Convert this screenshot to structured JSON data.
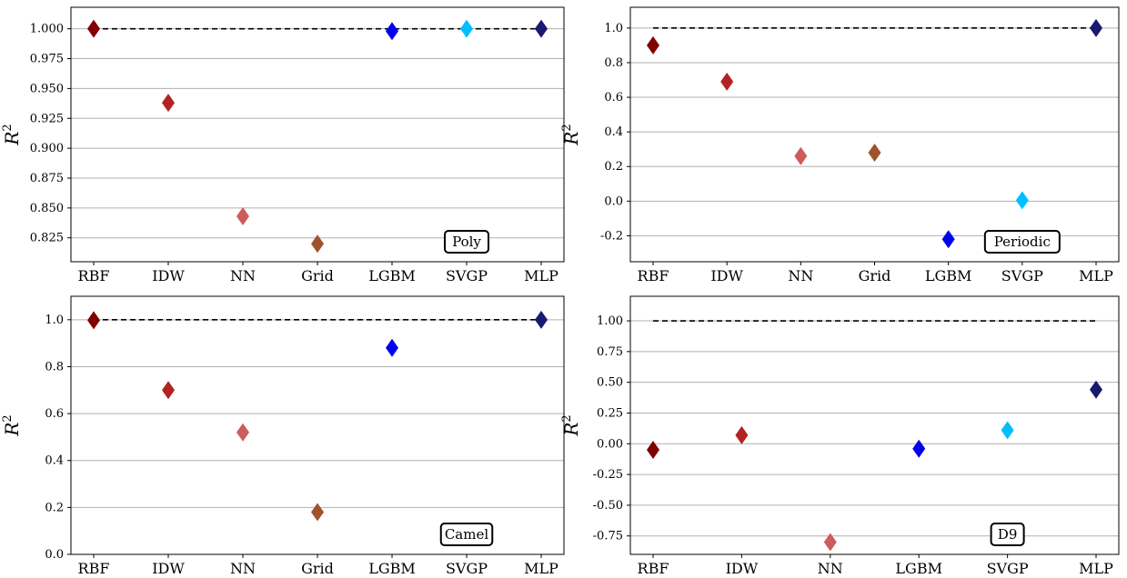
{
  "chart_data": [
    {
      "type": "scatter",
      "ylabel": "R",
      "ylabel_sup": "2",
      "badge": "Poly",
      "badge_placement": "bottom-right",
      "categories": [
        "RBF",
        "IDW",
        "NN",
        "Grid",
        "LGBM",
        "SVGP",
        "MLP"
      ],
      "values": [
        1.0,
        0.938,
        0.843,
        0.82,
        0.998,
        1.0,
        1.0
      ],
      "ylim": [
        0.805,
        1.018
      ],
      "yticks": [
        0.825,
        0.85,
        0.875,
        0.9,
        0.925,
        0.95,
        0.975,
        1.0
      ],
      "ytick_labels": [
        "0.825",
        "0.850",
        "0.875",
        "0.900",
        "0.925",
        "0.950",
        "0.975",
        "1.000"
      ],
      "reference_line": 1.0,
      "reference_span": [
        0,
        6
      ],
      "grid": "horizontal"
    },
    {
      "type": "scatter",
      "ylabel": "R",
      "ylabel_sup": "2",
      "badge": "Periodic",
      "badge_placement": "bottom-right",
      "categories": [
        "RBF",
        "IDW",
        "NN",
        "Grid",
        "LGBM",
        "SVGP",
        "MLP"
      ],
      "values": [
        0.9,
        0.69,
        0.26,
        0.28,
        -0.22,
        0.005,
        1.0
      ],
      "ylim": [
        -0.35,
        1.12
      ],
      "yticks": [
        -0.2,
        0.0,
        0.2,
        0.4,
        0.6,
        0.8,
        1.0
      ],
      "ytick_labels": [
        "-0.2",
        "0.0",
        "0.2",
        "0.4",
        "0.6",
        "0.8",
        "1.0"
      ],
      "reference_line": 1.0,
      "reference_span": [
        0,
        6
      ],
      "grid": "horizontal"
    },
    {
      "type": "scatter",
      "ylabel": "R",
      "ylabel_sup": "2",
      "badge": "Camel",
      "badge_placement": "bottom-right",
      "categories": [
        "RBF",
        "IDW",
        "NN",
        "Grid",
        "LGBM",
        "SVGP",
        "MLP"
      ],
      "values": [
        0.998,
        0.7,
        0.52,
        0.18,
        0.88,
        null,
        1.0
      ],
      "ylim": [
        0.0,
        1.1
      ],
      "yticks": [
        0.0,
        0.2,
        0.4,
        0.6,
        0.8,
        1.0
      ],
      "ytick_labels": [
        "0.0",
        "0.2",
        "0.4",
        "0.6",
        "0.8",
        "1.0"
      ],
      "reference_line": 1.0,
      "reference_span": [
        0,
        6
      ],
      "grid": "horizontal"
    },
    {
      "type": "scatter",
      "ylabel": "R",
      "ylabel_sup": "2",
      "badge": "D9",
      "badge_placement": "bottom-right",
      "categories": [
        "RBF",
        "IDW",
        "NN",
        "LGBM",
        "SVGP",
        "MLP"
      ],
      "values": [
        -0.05,
        0.07,
        -0.8,
        -0.04,
        0.11,
        0.44
      ],
      "ylim": [
        -0.9,
        1.2
      ],
      "yticks": [
        -0.75,
        -0.5,
        -0.25,
        0.0,
        0.25,
        0.5,
        0.75,
        1.0
      ],
      "ytick_labels": [
        "-0.75",
        "-0.50",
        "-0.25",
        "0.00",
        "0.25",
        "0.50",
        "0.75",
        "1.00"
      ],
      "reference_line": 1.0,
      "reference_span": [
        0,
        5
      ],
      "grid": "horizontal"
    }
  ],
  "colors": {
    "RBF": "#800000",
    "IDW": "#b22222",
    "NN": "#cd5c5c",
    "Grid": "#a0522d",
    "LGBM": "#0000ee",
    "SVGP": "#00bfff",
    "MLP": "#191970",
    "grid": "#b0b0b0",
    "reference": "#000000"
  }
}
